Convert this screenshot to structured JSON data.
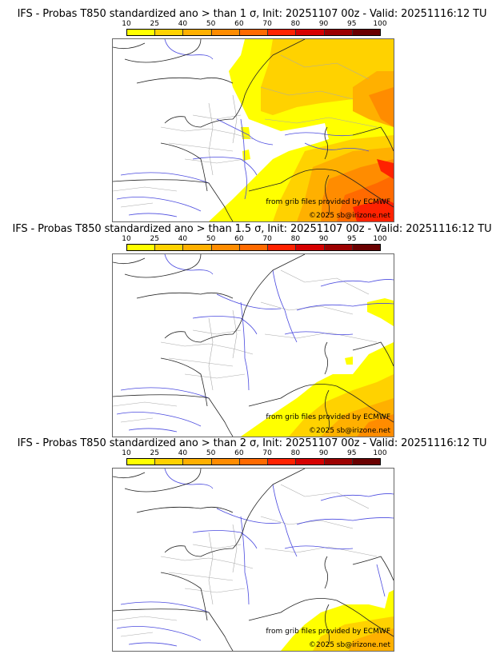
{
  "colorbar": {
    "ticks": [
      "10",
      "25",
      "40",
      "50",
      "60",
      "70",
      "80",
      "90",
      "95",
      "100"
    ],
    "colors": [
      "#ffff00",
      "#ffd200",
      "#ffb000",
      "#ff8c00",
      "#ff6a00",
      "#ff2200",
      "#d60000",
      "#9c0000",
      "#6a0000"
    ]
  },
  "panels": [
    {
      "title": "IFS - Probas T850  standardized ano > than 1 σ, Init: 20251107 00z - Valid: 20251116:12 TU",
      "threshold_sigma": 1,
      "credit_source": "from grib files provided by ECMWF",
      "credit_copyright": "©2025 sb@irizone.net"
    },
    {
      "title": "IFS - Probas T850  standardized ano > than 1.5 σ, Init: 20251107 00z - Valid: 20251116:12 TU",
      "threshold_sigma": 1.5,
      "credit_source": "from grib files provided by ECMWF",
      "credit_copyright": "©2025 sb@irizone.net"
    },
    {
      "title": "IFS - Probas T850  standardized ano > than 2 σ, Init: 20251107 00z - Valid: 20251116:12 TU",
      "threshold_sigma": 2,
      "credit_source": "from grib files provided by ECMWF",
      "credit_copyright": "©2025 sb@irizone.net"
    }
  ],
  "style": {
    "coast_color": "#222222",
    "river_color": "#4a4adf",
    "border_color": "#aaaaaa"
  }
}
